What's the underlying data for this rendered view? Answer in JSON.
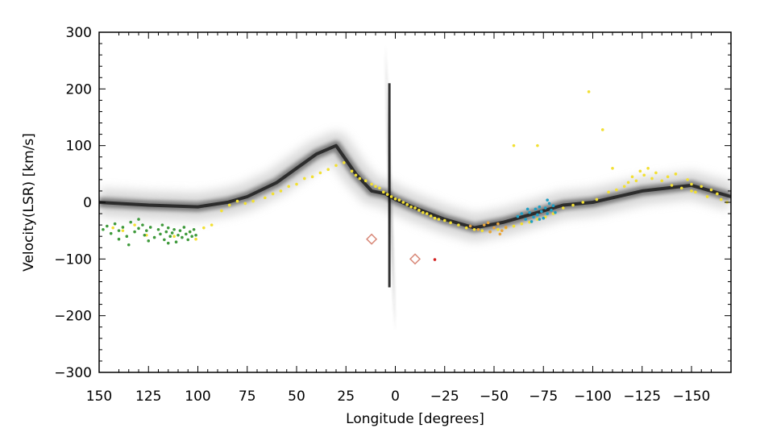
{
  "chart_data": {
    "type": "scatter",
    "xlabel": "Longitude [degrees]",
    "ylabel": "Velocity(LSR) [km/s]",
    "xlim": [
      150,
      -170
    ],
    "ylim": [
      -300,
      300
    ],
    "x_reversed": true,
    "x_ticks": [
      150,
      125,
      100,
      75,
      50,
      25,
      0,
      -25,
      -50,
      -75,
      -100,
      -125,
      -150
    ],
    "x_tick_labels": [
      "150",
      "125",
      "100",
      "75",
      "50",
      "25",
      "0",
      "−25",
      "−50",
      "−75",
      "−100",
      "−125",
      "−150"
    ],
    "y_ticks": [
      300,
      200,
      100,
      0,
      -100,
      -200,
      -300
    ],
    "y_tick_labels": [
      "300",
      "200",
      "100",
      "0",
      "−100",
      "−200",
      "−300"
    ],
    "grid": false,
    "background": {
      "description": "grayscale longitude-velocity emission map",
      "ridge_l": [
        150,
        125,
        100,
        85,
        75,
        60,
        50,
        40,
        30,
        20,
        12,
        5,
        0,
        -10,
        -25,
        -40,
        -55,
        -70,
        -85,
        -100,
        -125,
        -150,
        -170
      ],
      "ridge_v": [
        0,
        -5,
        -8,
        0,
        10,
        35,
        60,
        85,
        100,
        50,
        20,
        15,
        5,
        -10,
        -30,
        -45,
        -35,
        -20,
        -5,
        0,
        20,
        30,
        10
      ],
      "spike_l": [
        5,
        0
      ],
      "spike_v": [
        280,
        -230
      ]
    },
    "series": [
      {
        "color": "#f2e033",
        "points": [
          [
            143,
            -45
          ],
          [
            138,
            -50
          ],
          [
            132,
            -40
          ],
          [
            126,
            -58
          ],
          [
            112,
            -60
          ],
          [
            104,
            -52
          ],
          [
            101,
            -65
          ],
          [
            97,
            -45
          ],
          [
            93,
            -40
          ],
          [
            88,
            -15
          ],
          [
            84,
            -5
          ],
          [
            80,
            2
          ],
          [
            76,
            -2
          ],
          [
            72,
            2
          ],
          [
            66,
            8
          ],
          [
            62,
            15
          ],
          [
            58,
            20
          ],
          [
            54,
            28
          ],
          [
            50,
            32
          ],
          [
            46,
            42
          ],
          [
            42,
            45
          ],
          [
            38,
            52
          ],
          [
            34,
            58
          ],
          [
            30,
            65
          ],
          [
            26,
            70
          ],
          [
            22,
            55
          ],
          [
            20,
            48
          ],
          [
            18,
            42
          ],
          [
            15,
            38
          ],
          [
            12,
            32
          ],
          [
            10,
            28
          ],
          [
            8,
            25
          ],
          [
            6,
            18
          ],
          [
            4,
            14
          ],
          [
            2,
            10
          ],
          [
            0,
            6
          ],
          [
            -2,
            4
          ],
          [
            -4,
            0
          ],
          [
            -6,
            -4
          ],
          [
            -8,
            -8
          ],
          [
            -10,
            -10
          ],
          [
            -12,
            -14
          ],
          [
            -14,
            -18
          ],
          [
            -16,
            -20
          ],
          [
            -18,
            -24
          ],
          [
            -20,
            -28
          ],
          [
            -22,
            -30
          ],
          [
            -25,
            -32
          ],
          [
            -28,
            -36
          ],
          [
            -32,
            -40
          ],
          [
            -36,
            -45
          ],
          [
            -40,
            -48
          ],
          [
            -44,
            -50
          ],
          [
            -48,
            -52
          ],
          [
            -52,
            -48
          ],
          [
            -56,
            -45
          ],
          [
            -60,
            -42
          ],
          [
            -64,
            -38
          ],
          [
            -68,
            -35
          ],
          [
            -72,
            -30
          ],
          [
            -76,
            -26
          ],
          [
            -80,
            -20
          ],
          [
            -85,
            -10
          ],
          [
            -90,
            -5
          ],
          [
            -95,
            0
          ],
          [
            -98,
            195
          ],
          [
            -102,
            5
          ],
          [
            -105,
            128
          ],
          [
            -108,
            18
          ],
          [
            -112,
            22
          ],
          [
            -116,
            28
          ],
          [
            -118,
            35
          ],
          [
            -120,
            45
          ],
          [
            -122,
            38
          ],
          [
            -124,
            55
          ],
          [
            -126,
            48
          ],
          [
            -128,
            60
          ],
          [
            -130,
            42
          ],
          [
            -132,
            52
          ],
          [
            -135,
            38
          ],
          [
            -138,
            45
          ],
          [
            -140,
            30
          ],
          [
            -142,
            50
          ],
          [
            -145,
            25
          ],
          [
            -148,
            40
          ],
          [
            -150,
            32
          ],
          [
            -152,
            18
          ],
          [
            -155,
            28
          ],
          [
            -158,
            10
          ],
          [
            -160,
            22
          ],
          [
            -163,
            15
          ],
          [
            -165,
            5
          ],
          [
            -168,
            0
          ],
          [
            -60,
            100
          ],
          [
            -72,
            100
          ],
          [
            -110,
            60
          ],
          [
            -150,
            20
          ]
        ]
      },
      {
        "color": "#3f9a3c",
        "points": [
          [
            148,
            -48
          ],
          [
            146,
            -42
          ],
          [
            144,
            -55
          ],
          [
            142,
            -38
          ],
          [
            140,
            -50
          ],
          [
            138,
            -44
          ],
          [
            136,
            -60
          ],
          [
            134,
            -35
          ],
          [
            132,
            -52
          ],
          [
            130,
            -46
          ],
          [
            128,
            -40
          ],
          [
            127,
            -58
          ],
          [
            126,
            -50
          ],
          [
            124,
            -44
          ],
          [
            122,
            -62
          ],
          [
            120,
            -48
          ],
          [
            119,
            -56
          ],
          [
            118,
            -40
          ],
          [
            117,
            -66
          ],
          [
            116,
            -52
          ],
          [
            115,
            -45
          ],
          [
            114,
            -60
          ],
          [
            113,
            -54
          ],
          [
            112,
            -48
          ],
          [
            111,
            -70
          ],
          [
            110,
            -58
          ],
          [
            109,
            -50
          ],
          [
            108,
            -62
          ],
          [
            107,
            -44
          ],
          [
            106,
            -56
          ],
          [
            105,
            -66
          ],
          [
            104,
            -52
          ],
          [
            103,
            -60
          ],
          [
            102,
            -48
          ],
          [
            101,
            -58
          ],
          [
            135,
            -75
          ],
          [
            125,
            -68
          ],
          [
            115,
            -72
          ],
          [
            130,
            -30
          ],
          [
            140,
            -65
          ]
        ]
      },
      {
        "color": "#1f9fc4",
        "points": [
          [
            -62,
            -25
          ],
          [
            -64,
            -20
          ],
          [
            -66,
            -30
          ],
          [
            -68,
            -18
          ],
          [
            -70,
            -26
          ],
          [
            -71,
            -12
          ],
          [
            -72,
            -22
          ],
          [
            -73,
            -8
          ],
          [
            -74,
            -16
          ],
          [
            -75,
            -28
          ],
          [
            -76,
            -10
          ],
          [
            -77,
            -20
          ],
          [
            -78,
            -2
          ],
          [
            -79,
            -14
          ],
          [
            -80,
            -6
          ],
          [
            -81,
            -18
          ],
          [
            -69,
            -34
          ],
          [
            -67,
            -12
          ],
          [
            -73,
            -30
          ],
          [
            -77,
            4
          ]
        ]
      },
      {
        "color": "#e8a53a",
        "points": [
          [
            -38,
            -42
          ],
          [
            -42,
            -48
          ],
          [
            -45,
            -40
          ],
          [
            -48,
            -52
          ],
          [
            -50,
            -45
          ],
          [
            -52,
            -38
          ],
          [
            -54,
            -50
          ],
          [
            -56,
            -44
          ],
          [
            -47,
            -36
          ],
          [
            -53,
            -56
          ]
        ]
      },
      {
        "color": "#d98a7a",
        "marker": "diamond",
        "points": [
          [
            12,
            -65
          ],
          [
            -10,
            -100
          ]
        ]
      },
      {
        "color": "#d42020",
        "points": [
          [
            -20,
            -101
          ]
        ]
      }
    ]
  }
}
